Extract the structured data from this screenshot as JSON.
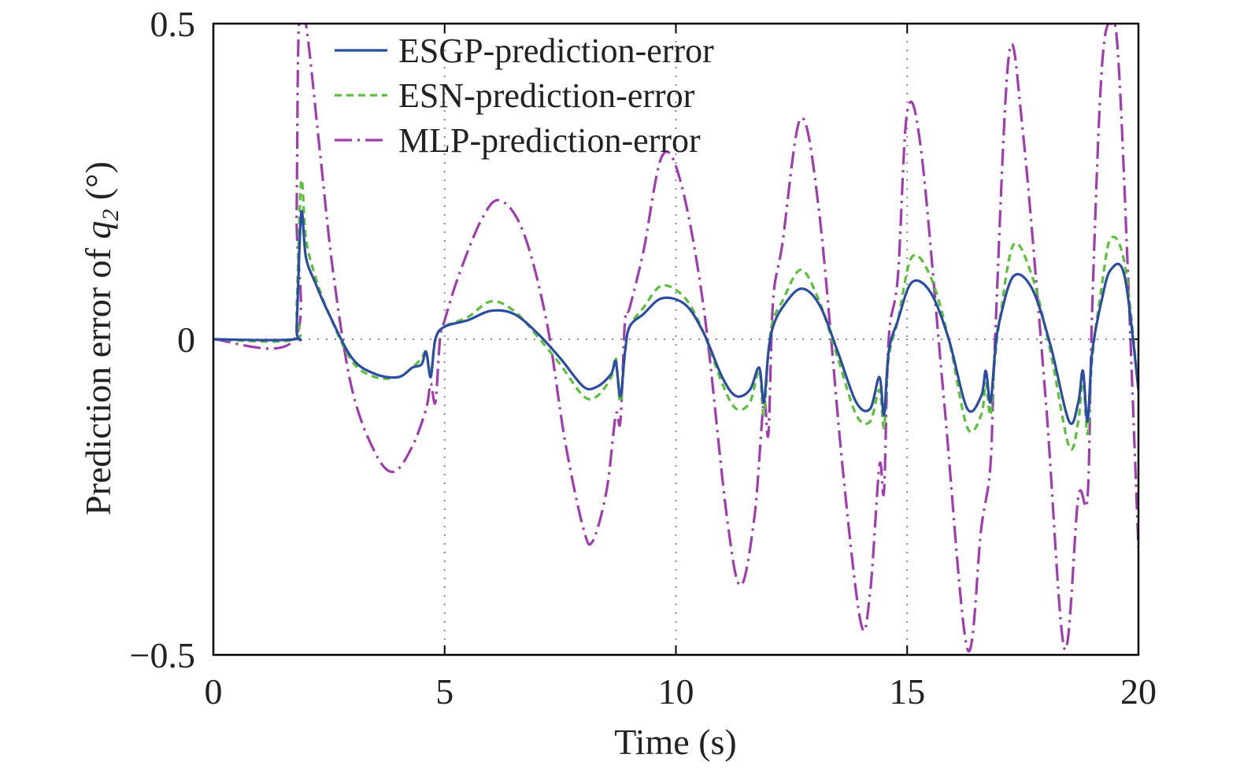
{
  "chart_data": {
    "type": "line",
    "xlabel": "Time (s)",
    "ylabel_prefix": "Prediction error of ",
    "ylabel_var": "q",
    "ylabel_sub": "2",
    "ylabel_suffix": " (°)",
    "xlim": [
      0,
      20
    ],
    "ylim": [
      -0.5,
      0.5
    ],
    "x_ticks": [
      0,
      5,
      10,
      15,
      20
    ],
    "x_tick_labels": [
      "0",
      "5",
      "10",
      "15",
      "20"
    ],
    "y_ticks": [
      -0.5,
      0,
      0.5
    ],
    "y_tick_labels": [
      "−0.5",
      "0",
      "0.5"
    ],
    "grid": "dotted at major ticks",
    "legend_position": "top-left",
    "series": [
      {
        "name": "ESGP-prediction-error",
        "color": "#2a4da3",
        "style": "solid",
        "points": [
          [
            0,
            0
          ],
          [
            1.75,
            0
          ],
          [
            1.8,
            0.02
          ],
          [
            1.9,
            0.2
          ],
          [
            2.0,
            0.13
          ],
          [
            2.2,
            0.09
          ],
          [
            2.5,
            0.04
          ],
          [
            3.0,
            -0.03
          ],
          [
            3.5,
            -0.055
          ],
          [
            4.0,
            -0.06
          ],
          [
            4.3,
            -0.045
          ],
          [
            4.5,
            -0.04
          ],
          [
            4.6,
            -0.02
          ],
          [
            4.7,
            -0.06
          ],
          [
            4.8,
            0
          ],
          [
            5.0,
            0.02
          ],
          [
            5.5,
            0.03
          ],
          [
            6.0,
            0.045
          ],
          [
            6.5,
            0.04
          ],
          [
            7.0,
            0.01
          ],
          [
            7.5,
            -0.03
          ],
          [
            8.0,
            -0.075
          ],
          [
            8.3,
            -0.075
          ],
          [
            8.6,
            -0.055
          ],
          [
            8.7,
            -0.035
          ],
          [
            8.8,
            -0.09
          ],
          [
            8.9,
            -0.02
          ],
          [
            9.0,
            0.02
          ],
          [
            9.3,
            0.04
          ],
          [
            9.7,
            0.065
          ],
          [
            10.2,
            0.055
          ],
          [
            10.6,
            0.01
          ],
          [
            11.0,
            -0.06
          ],
          [
            11.3,
            -0.09
          ],
          [
            11.6,
            -0.08
          ],
          [
            11.8,
            -0.045
          ],
          [
            11.9,
            -0.1
          ],
          [
            12.0,
            -0.02
          ],
          [
            12.1,
            0.02
          ],
          [
            12.3,
            0.05
          ],
          [
            12.7,
            0.08
          ],
          [
            13.1,
            0.055
          ],
          [
            13.5,
            -0.02
          ],
          [
            13.9,
            -0.1
          ],
          [
            14.2,
            -0.11
          ],
          [
            14.4,
            -0.06
          ],
          [
            14.5,
            -0.12
          ],
          [
            14.6,
            -0.02
          ],
          [
            14.8,
            0.03
          ],
          [
            15.1,
            0.09
          ],
          [
            15.5,
            0.075
          ],
          [
            15.9,
            0
          ],
          [
            16.3,
            -0.11
          ],
          [
            16.6,
            -0.09
          ],
          [
            16.7,
            -0.05
          ],
          [
            16.8,
            -0.1
          ],
          [
            16.9,
            -0.02
          ],
          [
            17.0,
            0.03
          ],
          [
            17.3,
            0.1
          ],
          [
            17.7,
            0.08
          ],
          [
            18.1,
            -0.01
          ],
          [
            18.5,
            -0.13
          ],
          [
            18.7,
            -0.1
          ],
          [
            18.8,
            -0.05
          ],
          [
            18.9,
            -0.13
          ],
          [
            19.0,
            -0.02
          ],
          [
            19.2,
            0.06
          ],
          [
            19.4,
            0.11
          ],
          [
            19.7,
            0.1
          ],
          [
            20.0,
            -0.08
          ]
        ]
      },
      {
        "name": "ESN-prediction-error",
        "color": "#5cbf3a",
        "style": "dashed",
        "points": [
          [
            0,
            0
          ],
          [
            1.75,
            0
          ],
          [
            1.8,
            0.05
          ],
          [
            1.9,
            0.25
          ],
          [
            2.0,
            0.16
          ],
          [
            2.2,
            0.1
          ],
          [
            2.5,
            0.04
          ],
          [
            3.0,
            -0.035
          ],
          [
            3.5,
            -0.06
          ],
          [
            4.0,
            -0.06
          ],
          [
            4.3,
            -0.045
          ],
          [
            4.5,
            -0.03
          ],
          [
            4.6,
            -0.02
          ],
          [
            4.7,
            -0.055
          ],
          [
            4.8,
            0
          ],
          [
            5.0,
            0.02
          ],
          [
            5.5,
            0.035
          ],
          [
            6.0,
            0.06
          ],
          [
            6.5,
            0.045
          ],
          [
            7.0,
            0.005
          ],
          [
            7.5,
            -0.04
          ],
          [
            8.0,
            -0.09
          ],
          [
            8.3,
            -0.09
          ],
          [
            8.6,
            -0.06
          ],
          [
            8.7,
            -0.03
          ],
          [
            8.8,
            -0.1
          ],
          [
            8.9,
            -0.02
          ],
          [
            9.0,
            0.02
          ],
          [
            9.3,
            0.05
          ],
          [
            9.7,
            0.085
          ],
          [
            10.2,
            0.065
          ],
          [
            10.6,
            0.01
          ],
          [
            11.0,
            -0.07
          ],
          [
            11.3,
            -0.11
          ],
          [
            11.6,
            -0.1
          ],
          [
            11.8,
            -0.05
          ],
          [
            11.9,
            -0.12
          ],
          [
            12.0,
            -0.02
          ],
          [
            12.1,
            0.03
          ],
          [
            12.3,
            0.06
          ],
          [
            12.7,
            0.11
          ],
          [
            13.1,
            0.06
          ],
          [
            13.5,
            -0.03
          ],
          [
            13.9,
            -0.12
          ],
          [
            14.2,
            -0.13
          ],
          [
            14.4,
            -0.08
          ],
          [
            14.5,
            -0.14
          ],
          [
            14.6,
            -0.03
          ],
          [
            14.8,
            0.03
          ],
          [
            15.1,
            0.13
          ],
          [
            15.5,
            0.1
          ],
          [
            15.9,
            0
          ],
          [
            16.3,
            -0.14
          ],
          [
            16.6,
            -0.12
          ],
          [
            16.7,
            -0.07
          ],
          [
            16.8,
            -0.12
          ],
          [
            16.9,
            -0.03
          ],
          [
            17.0,
            0.03
          ],
          [
            17.3,
            0.15
          ],
          [
            17.7,
            0.1
          ],
          [
            18.1,
            -0.02
          ],
          [
            18.5,
            -0.17
          ],
          [
            18.7,
            -0.13
          ],
          [
            18.8,
            -0.06
          ],
          [
            18.9,
            -0.15
          ],
          [
            19.0,
            -0.03
          ],
          [
            19.2,
            0.08
          ],
          [
            19.4,
            0.16
          ],
          [
            19.7,
            0.12
          ],
          [
            20.0,
            -0.08
          ]
        ]
      },
      {
        "name": "MLP-prediction-error",
        "color": "#a03cb0",
        "style": "dash-dot",
        "points": [
          [
            0,
            0
          ],
          [
            1.75,
            0
          ],
          [
            1.8,
            0.2
          ],
          [
            1.85,
            0.5
          ],
          [
            2.0,
            0.5
          ],
          [
            2.3,
            0.3
          ],
          [
            2.6,
            0.1
          ],
          [
            3.0,
            -0.08
          ],
          [
            3.5,
            -0.18
          ],
          [
            3.9,
            -0.21
          ],
          [
            4.3,
            -0.17
          ],
          [
            4.6,
            -0.11
          ],
          [
            4.7,
            -0.07
          ],
          [
            4.8,
            -0.1
          ],
          [
            4.9,
            0
          ],
          [
            5.0,
            0.03
          ],
          [
            5.3,
            0.1
          ],
          [
            5.8,
            0.19
          ],
          [
            6.2,
            0.22
          ],
          [
            6.7,
            0.17
          ],
          [
            7.2,
            0.03
          ],
          [
            7.6,
            -0.16
          ],
          [
            8.0,
            -0.3
          ],
          [
            8.2,
            -0.32
          ],
          [
            8.5,
            -0.24
          ],
          [
            8.7,
            -0.12
          ],
          [
            8.8,
            -0.13
          ],
          [
            8.9,
            0.03
          ],
          [
            9.0,
            0.05
          ],
          [
            9.3,
            0.14
          ],
          [
            9.7,
            0.29
          ],
          [
            10.1,
            0.25
          ],
          [
            10.6,
            0.05
          ],
          [
            11.1,
            -0.28
          ],
          [
            11.4,
            -0.39
          ],
          [
            11.7,
            -0.28
          ],
          [
            11.9,
            -0.1
          ],
          [
            12.0,
            -0.15
          ],
          [
            12.1,
            0.06
          ],
          [
            12.3,
            0.15
          ],
          [
            12.7,
            0.35
          ],
          [
            13.1,
            0.2
          ],
          [
            13.6,
            -0.2
          ],
          [
            14.0,
            -0.45
          ],
          [
            14.2,
            -0.4
          ],
          [
            14.4,
            -0.2
          ],
          [
            14.5,
            -0.24
          ],
          [
            14.6,
            0.0
          ],
          [
            14.8,
            0.1
          ],
          [
            15.0,
            0.36
          ],
          [
            15.3,
            0.3
          ],
          [
            15.8,
            -0.1
          ],
          [
            16.3,
            -0.49
          ],
          [
            16.6,
            -0.3
          ],
          [
            16.8,
            -0.2
          ],
          [
            16.9,
            0.0
          ],
          [
            17.2,
            0.45
          ],
          [
            17.5,
            0.33
          ],
          [
            18.0,
            -0.1
          ],
          [
            18.4,
            -0.49
          ],
          [
            18.7,
            -0.25
          ],
          [
            18.9,
            -0.25
          ],
          [
            19.0,
            0.05
          ],
          [
            19.2,
            0.42
          ],
          [
            19.4,
            0.5
          ],
          [
            19.6,
            0.4
          ],
          [
            20.0,
            -0.33
          ]
        ]
      }
    ]
  }
}
